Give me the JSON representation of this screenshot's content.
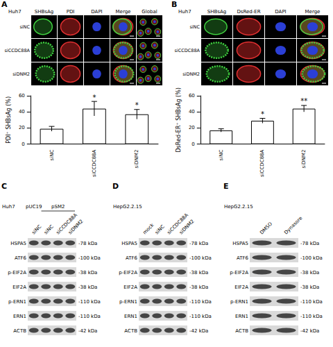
{
  "chart_data": [
    {
      "type": "bar",
      "y_label": "PDI⁺ SHBsAg (%)",
      "categories": [
        "siNC",
        "siCCDC88A",
        "siDNM2"
      ],
      "values": [
        19,
        44,
        37
      ],
      "errors": [
        3,
        9,
        6
      ],
      "color": "#ffffff",
      "ylim": [
        0,
        60
      ],
      "yticks": [
        0,
        20,
        40,
        60
      ],
      "grid": false,
      "annotations": [
        {
          "category": "siCCDC88A",
          "text": "*"
        },
        {
          "category": "siDNM2",
          "text": "*"
        }
      ]
    },
    {
      "type": "bar",
      "y_label": "DsRed-ER⁺ SHBsAg (%)",
      "categories": [
        "siNC",
        "siCCDC88A",
        "siDNM2"
      ],
      "values": [
        17,
        29,
        44
      ],
      "errors": [
        2,
        3,
        4
      ],
      "color": "#ffffff",
      "ylim": [
        0,
        60
      ],
      "yticks": [
        0,
        20,
        40,
        60
      ],
      "grid": false,
      "annotations": [
        {
          "category": "siCCDC88A",
          "text": "*"
        },
        {
          "category": "siDNM2",
          "text": "**"
        }
      ]
    }
  ],
  "figure": {
    "images": [
      {
        "label": "A",
        "cell_line": "Huh7",
        "columns": [
          "SHBsAg",
          "PDI",
          "DAPI",
          "Merge",
          "Global"
        ],
        "rows": [
          "siNC",
          "siCCDC88A",
          "siDNM2"
        ]
      },
      {
        "label": "B",
        "cell_line": "Huh7",
        "columns": [
          "SHBsAg",
          "DsRed-ER",
          "DAPI",
          "Merge"
        ],
        "rows": [
          "siNC",
          "siCCDC88A",
          "siDNM2"
        ]
      }
    ],
    "blots": [
      {
        "label": "C",
        "cell_line": "Huh7",
        "groups": [
          {
            "text": "pUC19",
            "lanes": [
              "siNC"
            ]
          },
          {
            "text": "pSM2",
            "lanes": [
              "siNC",
              "siCCDC88A",
              "siDNM2"
            ]
          }
        ],
        "bands": [
          {
            "name": "HSPA5",
            "size": "-78 kDa"
          },
          {
            "name": "ATF6",
            "size": "-100 kDa"
          },
          {
            "name": "p-EIF2A",
            "size": "-38 kDa"
          },
          {
            "name": "EIF2A",
            "size": "-38 kDa"
          },
          {
            "name": "p-ERN1",
            "size": "-110 kDa"
          },
          {
            "name": "ERN1",
            "size": "-110 kDa"
          },
          {
            "name": "ACTB",
            "size": "-42 kDa"
          }
        ]
      },
      {
        "label": "D",
        "cell_line": "HepG2.2.15",
        "groups": [
          {
            "text": null,
            "lanes": [
              "mock",
              "siNC",
              "siCCDC88A",
              "siDNM2"
            ]
          }
        ],
        "bands": [
          {
            "name": "HSPA5",
            "size": "-78 kDa"
          },
          {
            "name": "ATF6",
            "size": "-100 kDa"
          },
          {
            "name": "p-EIF2A",
            "size": "-38 kDa"
          },
          {
            "name": "EIF2A",
            "size": "-38 kDa"
          },
          {
            "name": "p-ERN1",
            "size": "-110 kDa"
          },
          {
            "name": "ERN1",
            "size": "-110 kDa"
          },
          {
            "name": "ACTB",
            "size": "-42 kDa"
          }
        ]
      },
      {
        "label": "E",
        "cell_line": "HepG2.2.15",
        "groups": [
          {
            "text": null,
            "lanes": [
              "DMSO",
              "Dynasore"
            ]
          }
        ],
        "bands": [
          {
            "name": "HSPA5",
            "size": "-78 kDa"
          },
          {
            "name": "ATF6",
            "size": "-100 kDa"
          },
          {
            "name": "p-EIF2A",
            "size": "-38 kDa"
          },
          {
            "name": "EIF2A",
            "size": "-38 kDa"
          },
          {
            "name": "p-ERN1",
            "size": "-110 kDa"
          },
          {
            "name": "ERN1",
            "size": "-110 kDa"
          },
          {
            "name": "ACTB",
            "size": "-42 kDa"
          }
        ]
      }
    ]
  }
}
